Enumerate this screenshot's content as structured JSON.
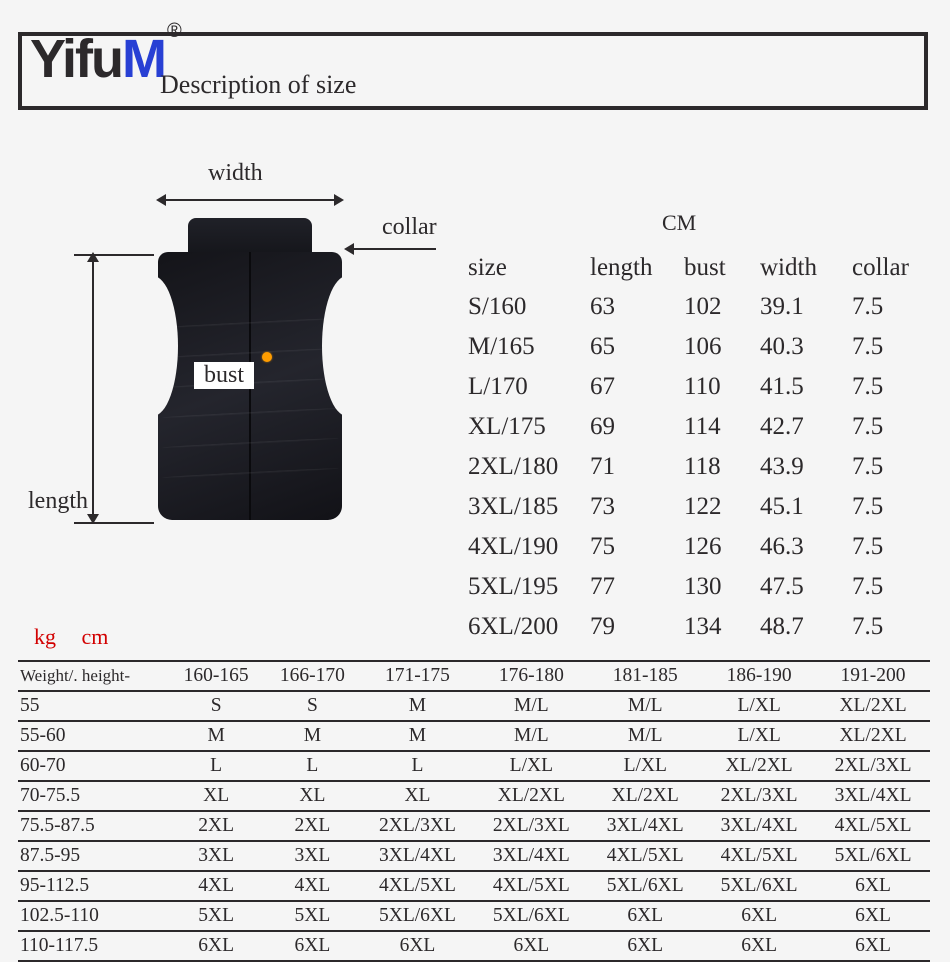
{
  "brand": {
    "text": "Yifu",
    "accent": "M",
    "reg": "®"
  },
  "header": {
    "description": "Description of size"
  },
  "diagram": {
    "width_label": "width",
    "collar_label": "collar",
    "length_label": "length",
    "bust_label": "bust"
  },
  "unit_label": "CM",
  "size_chart": {
    "columns": [
      "size",
      "length",
      "bust",
      "width",
      "collar"
    ],
    "background_color": "#f5f5f5",
    "text_color": "#2c292b",
    "font_size": 25,
    "rows": [
      [
        "S/160",
        "63",
        "102",
        "39.1",
        "7.5"
      ],
      [
        "M/165",
        "65",
        "106",
        "40.3",
        "7.5"
      ],
      [
        "L/170",
        "67",
        "110",
        "41.5",
        "7.5"
      ],
      [
        "XL/175",
        "69",
        "114",
        "42.7",
        "7.5"
      ],
      [
        "2XL/180",
        "71",
        "118",
        "43.9",
        "7.5"
      ],
      [
        "3XL/185",
        "73",
        "122",
        "45.1",
        "7.5"
      ],
      [
        "4XL/190",
        "75",
        "126",
        "46.3",
        "7.5"
      ],
      [
        "5XL/195",
        "77",
        "130",
        "47.5",
        "7.5"
      ],
      [
        "6XL/200",
        "79",
        "134",
        "48.7",
        "7.5"
      ]
    ]
  },
  "units": {
    "kg": "kg",
    "cm": "cm"
  },
  "recommendation": {
    "corner_label": "Weight/. height-",
    "height_ranges": [
      "160-165",
      "166-170",
      "171-175",
      "176-180",
      "181-185",
      "186-190",
      "191-200"
    ],
    "border_color": "#2c292b",
    "font_size": 19.5,
    "rows": [
      {
        "w": "55",
        "cells": [
          "S",
          "S",
          "M",
          "M/L",
          "M/L",
          "L/XL",
          "XL/2XL"
        ]
      },
      {
        "w": "55-60",
        "cells": [
          "M",
          "M",
          "M",
          "M/L",
          "M/L",
          "L/XL",
          "XL/2XL"
        ]
      },
      {
        "w": "60-70",
        "cells": [
          "L",
          "L",
          "L",
          "L/XL",
          "L/XL",
          "XL/2XL",
          "2XL/3XL"
        ]
      },
      {
        "w": "70-75.5",
        "cells": [
          "XL",
          "XL",
          "XL",
          "XL/2XL",
          "XL/2XL",
          "2XL/3XL",
          "3XL/4XL"
        ]
      },
      {
        "w": "75.5-87.5",
        "cells": [
          "2XL",
          "2XL",
          "2XL/3XL",
          "2XL/3XL",
          "3XL/4XL",
          "3XL/4XL",
          "4XL/5XL"
        ]
      },
      {
        "w": "87.5-95",
        "cells": [
          "3XL",
          "3XL",
          "3XL/4XL",
          "3XL/4XL",
          "4XL/5XL",
          "4XL/5XL",
          "5XL/6XL"
        ]
      },
      {
        "w": "95-112.5",
        "cells": [
          "4XL",
          "4XL",
          "4XL/5XL",
          "4XL/5XL",
          "5XL/6XL",
          "5XL/6XL",
          "6XL"
        ]
      },
      {
        "w": "102.5-110",
        "cells": [
          "5XL",
          "5XL",
          "5XL/6XL",
          "5XL/6XL",
          "6XL",
          "6XL",
          "6XL"
        ]
      },
      {
        "w": "110-117.5",
        "cells": [
          "6XL",
          "6XL",
          "6XL",
          "6XL",
          "6XL",
          "6XL",
          "6XL"
        ]
      }
    ]
  },
  "colors": {
    "background": "#f5f5f5",
    "text": "#2c292b",
    "accent": "#2840d4",
    "unit_red": "#d20000",
    "vest_dark": "#15161b",
    "button_glow": "#ff9d00"
  }
}
